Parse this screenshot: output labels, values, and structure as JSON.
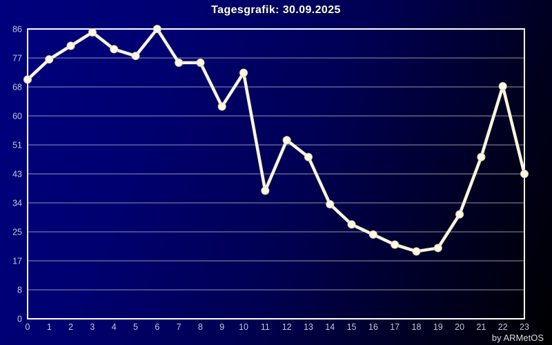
{
  "window": {
    "title": "Tagesgrafik: 30.09.2025",
    "credit": "by ARMetOS"
  },
  "chart_data": {
    "type": "line",
    "title": "Tagesgrafik: 30.09.2025",
    "xlabel": "",
    "ylabel": "",
    "x": [
      0,
      1,
      2,
      3,
      4,
      5,
      6,
      7,
      8,
      9,
      10,
      11,
      12,
      13,
      14,
      15,
      16,
      17,
      18,
      19,
      20,
      21,
      22,
      23
    ],
    "values": [
      71,
      77,
      81,
      85,
      80,
      78,
      86,
      76,
      76,
      63,
      73,
      38,
      53,
      48,
      34,
      28,
      25,
      22,
      20,
      21,
      31,
      48,
      69,
      43
    ],
    "ylim": [
      0,
      86
    ],
    "xlim": [
      0,
      23
    ],
    "grid": "horizontal-only",
    "legend": "none",
    "y_tick_labels_top_to_bottom": [
      "86",
      "77",
      "68",
      "60",
      "51",
      "43",
      "34",
      "25",
      "17",
      "8",
      "0"
    ],
    "x_tick_labels": [
      "0",
      "1",
      "2",
      "3",
      "4",
      "5",
      "6",
      "7",
      "8",
      "9",
      "10",
      "11",
      "12",
      "13",
      "14",
      "15",
      "16",
      "17",
      "18",
      "19",
      "20",
      "21",
      "22",
      "23"
    ],
    "marker": "circle"
  },
  "colors": {
    "bg_gradient_start": "#00007E",
    "bg_gradient_mid": "#000052",
    "bg_gradient_end": "#000000",
    "plot_border": "#FFFFFF",
    "grid_line": "#B8B8CC",
    "tick_label": "#C6C6DA",
    "title_text": "#FFFFFF",
    "credit_text": "#DCDCE8",
    "line": "#FBF5DC",
    "marker_fill": "#FDF9E6",
    "marker_rim": "#E3D9AE"
  }
}
